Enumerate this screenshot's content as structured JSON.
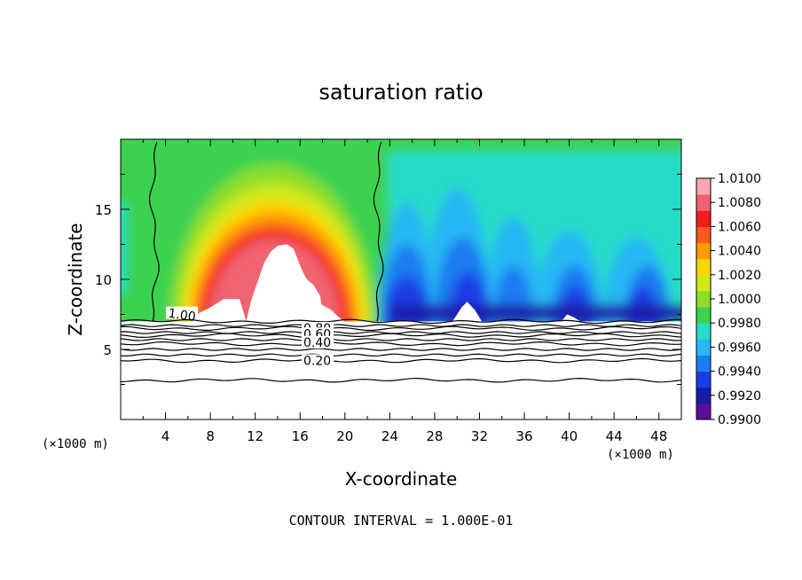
{
  "chart_data": {
    "type": "heatmap",
    "title": "saturation ratio",
    "xlabel": "X-coordinate",
    "ylabel": "Z-coordinate",
    "x_unit_label": "(×1000 m)",
    "footer": "CONTOUR INTERVAL = 1.000E-01",
    "xlim": [
      0,
      50
    ],
    "ylim": [
      0,
      20
    ],
    "x_ticks": [
      4,
      8,
      12,
      16,
      20,
      24,
      28,
      32,
      36,
      40,
      44,
      48
    ],
    "y_ticks": [
      5,
      10,
      15
    ],
    "colorbar": {
      "levels": [
        "0.9900",
        "0.9920",
        "0.9940",
        "0.9960",
        "0.9980",
        "1.0000",
        "1.0020",
        "1.0040",
        "1.0060",
        "1.0080",
        "1.0100"
      ],
      "colors": [
        "#5a0f9a",
        "#1a1aa8",
        "#1a3ce6",
        "#1e7cf0",
        "#28b8f4",
        "#28dcc8",
        "#3cd250",
        "#8cde2a",
        "#d2e81e",
        "#ffd600",
        "#ff9a00",
        "#ff5a1e",
        "#f01e1e",
        "#f06470",
        "#f7a8b0"
      ]
    },
    "ground_top_z": 7.0,
    "contour_lines": [
      {
        "label": "1.00",
        "z": 7.0
      },
      {
        "label": "0.80",
        "z": 6.5
      },
      {
        "label": "0.60",
        "z": 6.0
      },
      {
        "label": "0.40",
        "z": 5.4
      },
      {
        "label": "0.20",
        "z": 4.2
      },
      {
        "label": "",
        "z": 2.8
      }
    ],
    "moist_region_x": [
      3,
      23
    ],
    "moist_peak": {
      "x": 14.5,
      "z": 12.5
    },
    "dry_region_x": [
      23,
      50
    ]
  }
}
